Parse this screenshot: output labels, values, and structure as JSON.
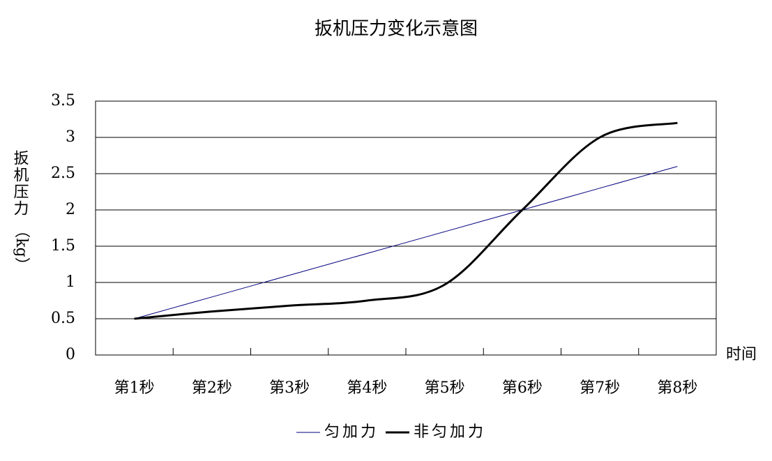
{
  "chart_data": {
    "type": "line",
    "title": "扳机压力变化示意图",
    "y_label_chars": "扳机压力",
    "y_label_unit": "（kg）",
    "x_label": "时间",
    "categories": [
      "第1秒",
      "第2秒",
      "第3秒",
      "第4秒",
      "第5秒",
      "第6秒",
      "第7秒",
      "第8秒"
    ],
    "series": [
      {
        "name": "匀加力",
        "color": "#000080",
        "width": 1,
        "values": [
          0.5,
          0.8,
          1.1,
          1.4,
          1.7,
          2.0,
          2.3,
          2.6
        ]
      },
      {
        "name": "非匀加力",
        "color": "#000000",
        "width": 3,
        "values": [
          0.5,
          0.6,
          0.68,
          0.75,
          0.97,
          2.0,
          3.0,
          3.2
        ]
      }
    ],
    "ylim": [
      0,
      3.5
    ],
    "yticks": [
      0,
      0.5,
      1,
      1.5,
      2,
      2.5,
      3,
      3.5
    ],
    "grid": true,
    "legend": "bottom"
  }
}
